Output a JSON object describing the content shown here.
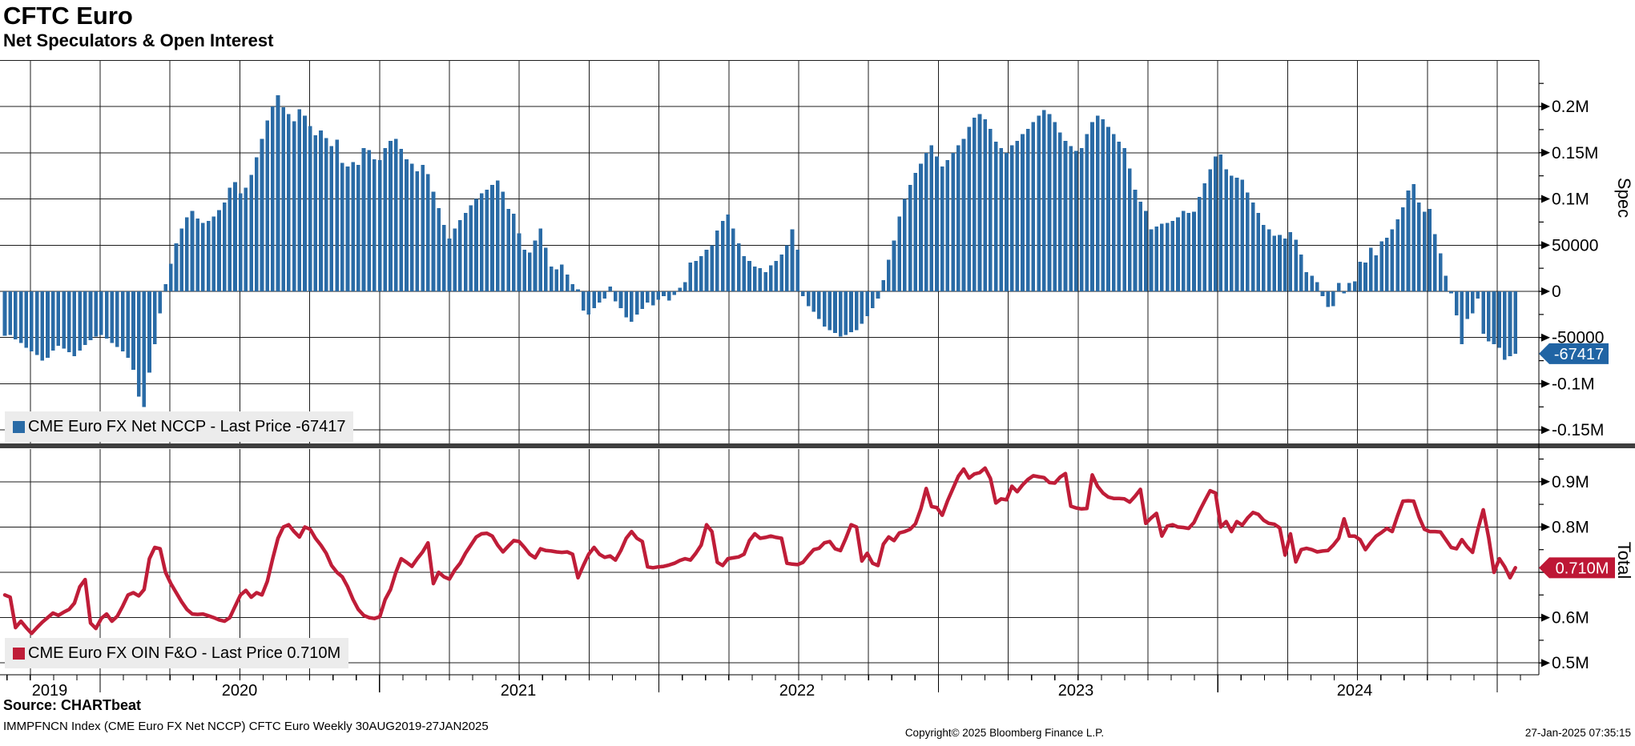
{
  "header": {
    "title": "CFTC Euro",
    "subtitle": "Net Speculators & Open Interest"
  },
  "panels": {
    "spec": {
      "axis_title": "Spec",
      "legend": "CME Euro FX Net NCCP - Last Price -67417",
      "last_price_tag": "-67417",
      "ticks": [
        {
          "value": 200,
          "label": "0.2M"
        },
        {
          "value": 150,
          "label": "0.15M"
        },
        {
          "value": 100,
          "label": "0.1M"
        },
        {
          "value": 50,
          "label": "50000"
        },
        {
          "value": 0,
          "label": "0"
        },
        {
          "value": -50,
          "label": "-50000"
        },
        {
          "value": -100,
          "label": "-0.1M"
        },
        {
          "value": -150,
          "label": "-0.15M"
        }
      ]
    },
    "total": {
      "axis_title": "Total",
      "legend": "CME Euro FX OIN F&O - Last Price 0.710M",
      "last_price_tag": "0.710M",
      "ticks": [
        {
          "value": 0.9,
          "label": "0.9M"
        },
        {
          "value": 0.8,
          "label": "0.8M"
        },
        {
          "value": 0.7,
          "label": ""
        },
        {
          "value": 0.6,
          "label": "0.6M"
        },
        {
          "value": 0.5,
          "label": "0.5M"
        }
      ]
    }
  },
  "x_axis": {
    "year_labels": [
      "2019",
      "2020",
      "2021",
      "2022",
      "2023",
      "2024"
    ]
  },
  "footer": {
    "source": "Source: CHARTbeat",
    "index_line": "IMMPFNCN Index (CME Euro FX Net NCCP) CFTC Euro  Weekly 30AUG2019-27JAN2025",
    "copyright": "Copyright© 2025 Bloomberg Finance L.P.",
    "timestamp": "27-Jan-2025 07:35:15"
  },
  "colors": {
    "bar": "#2a6ba6",
    "line": "#bf1d38",
    "tag_spec_bg": "#2064a4",
    "tag_total_bg": "#be1735",
    "grid": "#1c1c1c",
    "separator": "#3e3e3e",
    "legend_bg": "#ececec"
  },
  "chart_data": [
    {
      "type": "bar",
      "name": "CME Euro FX Net NCCP",
      "panel": "Spec",
      "frequency": "weekly",
      "start": "2019-08-30",
      "end": "2025-01-27",
      "unit": "contracts, thousands",
      "ylim_thousands": [
        -175,
        250
      ],
      "last_price": -67417,
      "values": [
        -48,
        -47,
        -52,
        -56,
        -61,
        -65,
        -69,
        -75,
        -72,
        -64,
        -59,
        -62,
        -66,
        -70,
        -64,
        -58,
        -53,
        -49,
        -47,
        -51,
        -56,
        -60,
        -65,
        -72,
        -85,
        -114,
        -125,
        -88,
        -57,
        -24,
        8,
        30,
        52,
        68,
        80,
        87,
        79,
        74,
        76,
        81,
        88,
        96,
        112,
        118,
        106,
        112,
        126,
        145,
        165,
        185,
        200,
        212,
        199,
        192,
        184,
        197,
        190,
        179,
        169,
        174,
        166,
        157,
        164,
        139,
        135,
        140,
        137,
        155,
        153,
        143,
        142,
        155,
        163,
        165,
        154,
        143,
        138,
        130,
        137,
        127,
        108,
        90,
        72,
        57,
        68,
        77,
        85,
        93,
        100,
        106,
        110,
        115,
        120,
        108,
        89,
        84,
        63,
        45,
        42,
        55,
        68,
        47,
        27,
        24,
        29,
        18,
        8,
        2,
        -21,
        -25,
        -18,
        -12,
        -8,
        5,
        -11,
        -18,
        -28,
        -33,
        -25,
        -19,
        -12,
        -15,
        -9,
        -5,
        -10,
        -4,
        4,
        10,
        31,
        33,
        38,
        45,
        50,
        66,
        76,
        83,
        68,
        52,
        38,
        33,
        27,
        25,
        21,
        28,
        33,
        40,
        50,
        67,
        45,
        -5,
        -16,
        -22,
        -30,
        -38,
        -42,
        -45,
        -49,
        -47,
        -44,
        -42,
        -35,
        -27,
        -18,
        -8,
        12,
        34,
        55,
        81,
        100,
        115,
        128,
        138,
        150,
        158,
        146,
        135,
        142,
        150,
        158,
        165,
        178,
        188,
        192,
        186,
        176,
        162,
        155,
        150,
        158,
        163,
        170,
        176,
        183,
        190,
        196,
        192,
        183,
        172,
        163,
        157,
        152,
        155,
        170,
        183,
        190,
        186,
        178,
        170,
        162,
        155,
        133,
        110,
        97,
        87,
        67,
        70,
        73,
        74,
        76,
        80,
        87,
        85,
        86,
        102,
        117,
        132,
        146,
        148,
        132,
        125,
        123,
        121,
        107,
        96,
        85,
        72,
        67,
        60,
        61,
        57,
        64,
        56,
        40,
        21,
        17,
        10,
        -5,
        -17,
        -16,
        9,
        -2,
        9,
        11,
        32,
        31,
        47,
        39,
        54,
        58,
        67,
        78,
        91,
        109,
        116,
        96,
        86,
        89,
        62,
        41,
        17,
        -2,
        -26,
        -57,
        -30,
        -24,
        -8,
        -46,
        -54,
        -57,
        -61,
        -74,
        -70,
        -67.417
      ]
    },
    {
      "type": "line",
      "name": "CME Euro FX OIN F&O",
      "panel": "Total",
      "frequency": "weekly",
      "start": "2019-08-30",
      "end": "2025-01-27",
      "unit": "contracts, millions",
      "ylim_millions": [
        0.47,
        0.975
      ],
      "last_price": 0.71,
      "values": [
        0.65,
        0.645,
        0.578,
        0.592,
        0.578,
        0.565,
        0.578,
        0.59,
        0.6,
        0.61,
        0.605,
        0.612,
        0.618,
        0.632,
        0.668,
        0.684,
        0.588,
        0.576,
        0.598,
        0.608,
        0.592,
        0.603,
        0.625,
        0.65,
        0.655,
        0.648,
        0.662,
        0.73,
        0.755,
        0.752,
        0.7,
        0.675,
        0.655,
        0.635,
        0.618,
        0.608,
        0.607,
        0.608,
        0.604,
        0.6,
        0.595,
        0.592,
        0.6,
        0.625,
        0.65,
        0.66,
        0.645,
        0.655,
        0.65,
        0.68,
        0.73,
        0.775,
        0.8,
        0.805,
        0.79,
        0.778,
        0.8,
        0.795,
        0.775,
        0.76,
        0.742,
        0.715,
        0.7,
        0.69,
        0.668,
        0.64,
        0.618,
        0.605,
        0.6,
        0.598,
        0.602,
        0.64,
        0.662,
        0.7,
        0.73,
        0.722,
        0.713,
        0.73,
        0.745,
        0.765,
        0.675,
        0.7,
        0.69,
        0.685,
        0.705,
        0.72,
        0.742,
        0.76,
        0.778,
        0.785,
        0.786,
        0.78,
        0.76,
        0.745,
        0.758,
        0.77,
        0.768,
        0.755,
        0.74,
        0.732,
        0.752,
        0.748,
        0.747,
        0.745,
        0.744,
        0.745,
        0.74,
        0.688,
        0.715,
        0.74,
        0.755,
        0.74,
        0.733,
        0.736,
        0.727,
        0.748,
        0.775,
        0.79,
        0.775,
        0.768,
        0.712,
        0.71,
        0.712,
        0.713,
        0.716,
        0.72,
        0.726,
        0.73,
        0.727,
        0.742,
        0.76,
        0.805,
        0.79,
        0.722,
        0.715,
        0.73,
        0.732,
        0.734,
        0.74,
        0.77,
        0.785,
        0.775,
        0.777,
        0.78,
        0.777,
        0.775,
        0.72,
        0.718,
        0.717,
        0.722,
        0.737,
        0.75,
        0.753,
        0.765,
        0.768,
        0.752,
        0.748,
        0.775,
        0.805,
        0.8,
        0.725,
        0.742,
        0.72,
        0.715,
        0.762,
        0.778,
        0.77,
        0.787,
        0.79,
        0.795,
        0.807,
        0.84,
        0.885,
        0.845,
        0.843,
        0.826,
        0.858,
        0.885,
        0.912,
        0.928,
        0.908,
        0.917,
        0.92,
        0.93,
        0.907,
        0.853,
        0.862,
        0.86,
        0.89,
        0.878,
        0.893,
        0.905,
        0.913,
        0.911,
        0.909,
        0.898,
        0.897,
        0.91,
        0.918,
        0.846,
        0.842,
        0.84,
        0.841,
        0.915,
        0.89,
        0.875,
        0.866,
        0.863,
        0.863,
        0.862,
        0.855,
        0.868,
        0.883,
        0.808,
        0.82,
        0.83,
        0.78,
        0.802,
        0.805,
        0.8,
        0.799,
        0.797,
        0.81,
        0.835,
        0.858,
        0.88,
        0.875,
        0.8,
        0.812,
        0.79,
        0.812,
        0.804,
        0.82,
        0.832,
        0.828,
        0.815,
        0.808,
        0.806,
        0.798,
        0.738,
        0.785,
        0.723,
        0.75,
        0.753,
        0.75,
        0.745,
        0.747,
        0.748,
        0.76,
        0.775,
        0.818,
        0.78,
        0.78,
        0.772,
        0.75,
        0.766,
        0.78,
        0.788,
        0.797,
        0.79,
        0.825,
        0.857,
        0.858,
        0.857,
        0.822,
        0.795,
        0.79,
        0.79,
        0.789,
        0.772,
        0.755,
        0.752,
        0.772,
        0.756,
        0.744,
        0.795,
        0.838,
        0.777,
        0.7,
        0.73,
        0.712,
        0.688,
        0.71
      ]
    }
  ]
}
